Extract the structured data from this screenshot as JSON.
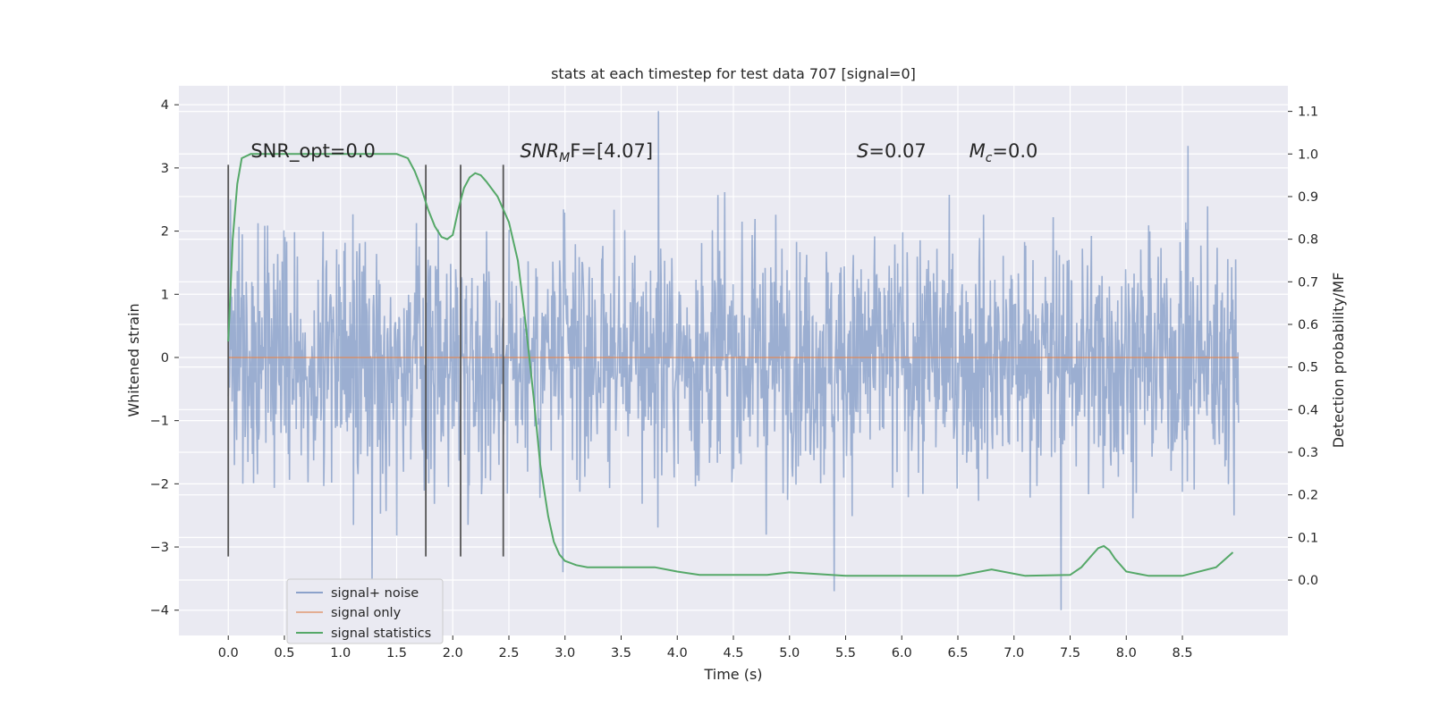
{
  "chart_data": {
    "type": "line",
    "title": "stats at each timestep for test data 707 [signal=0]",
    "xlabel": "Time (s)",
    "ylabel_left": "Whitened strain",
    "ylabel_right": "Detection probability/MF",
    "xlim": [
      -0.44,
      9.44
    ],
    "ylim_left": [
      -4.4,
      4.3
    ],
    "ylim_right": [
      -0.13,
      1.16
    ],
    "x_ticks": [
      0.0,
      0.5,
      1.0,
      1.5,
      2.0,
      2.5,
      3.0,
      3.5,
      4.0,
      4.5,
      5.0,
      5.5,
      6.0,
      6.5,
      7.0,
      7.5,
      8.0,
      8.5
    ],
    "x_tick_labels": [
      "0.0",
      "0.5",
      "1.0",
      "1.5",
      "2.0",
      "2.5",
      "3.0",
      "3.5",
      "4.0",
      "4.5",
      "5.0",
      "5.5",
      "6.0",
      "6.5",
      "7.0",
      "7.5",
      "8.0",
      "8.5"
    ],
    "y_left_ticks": [
      4,
      3,
      2,
      1,
      0,
      -1,
      -2,
      -3,
      -4
    ],
    "y_left_tick_labels": [
      "4",
      "3",
      "2",
      "1",
      "0",
      "−1",
      "−2",
      "−3",
      "−4"
    ],
    "y_right_ticks": [
      1.1,
      1.0,
      0.9,
      0.8,
      0.7,
      0.6,
      0.5,
      0.4,
      0.3,
      0.2,
      0.1,
      0.0
    ],
    "y_right_tick_labels": [
      "1.1",
      "1.0",
      "0.9",
      "0.8",
      "0.7",
      "0.6",
      "0.5",
      "0.4",
      "0.3",
      "0.2",
      "0.1",
      "0.0"
    ],
    "grid": true,
    "noise": {
      "name": "signal+ noise",
      "color": "#4c72b0",
      "opacity": 0.5,
      "t_start": 0.0,
      "t_end": 9.0,
      "typical_range": [
        -2.0,
        2.0
      ],
      "extremes": [
        {
          "t": 1.28,
          "v": -3.5
        },
        {
          "t": 3.83,
          "v": 3.9
        },
        {
          "t": 5.4,
          "v": -3.7
        },
        {
          "t": 7.42,
          "v": -4.0
        },
        {
          "t": 8.55,
          "v": 3.35
        },
        {
          "t": 2.98,
          "v": -3.4
        },
        {
          "t": 0.02,
          "v": 2.5
        }
      ]
    },
    "signal_only": {
      "name": "signal only",
      "color": "#dd8452",
      "value": 0.0,
      "t_start": 0.0,
      "t_end": 9.0
    },
    "statistics": {
      "name": "signal statistics",
      "color": "#55a868",
      "x": [
        0.0,
        0.04,
        0.08,
        0.12,
        0.2,
        0.3,
        0.5,
        1.0,
        1.5,
        1.6,
        1.66,
        1.72,
        1.78,
        1.84,
        1.9,
        1.95,
        2.0,
        2.05,
        2.1,
        2.15,
        2.2,
        2.25,
        2.3,
        2.4,
        2.5,
        2.58,
        2.65,
        2.72,
        2.78,
        2.85,
        2.9,
        2.95,
        3.0,
        3.1,
        3.2,
        3.4,
        3.6,
        3.8,
        4.0,
        4.2,
        4.5,
        4.8,
        5.0,
        5.2,
        5.5,
        6.0,
        6.5,
        6.8,
        7.1,
        7.5,
        7.6,
        7.7,
        7.75,
        7.8,
        7.85,
        7.9,
        8.0,
        8.2,
        8.5,
        8.8,
        8.95
      ],
      "y": [
        0.56,
        0.8,
        0.93,
        0.99,
        1.0,
        1.0,
        1.0,
        1.0,
        1.0,
        0.99,
        0.96,
        0.92,
        0.87,
        0.83,
        0.805,
        0.8,
        0.81,
        0.87,
        0.92,
        0.945,
        0.955,
        0.95,
        0.935,
        0.9,
        0.84,
        0.75,
        0.6,
        0.43,
        0.27,
        0.15,
        0.09,
        0.06,
        0.045,
        0.035,
        0.03,
        0.03,
        0.03,
        0.03,
        0.02,
        0.012,
        0.012,
        0.012,
        0.018,
        0.015,
        0.01,
        0.01,
        0.01,
        0.025,
        0.01,
        0.012,
        0.03,
        0.06,
        0.075,
        0.08,
        0.07,
        0.05,
        0.02,
        0.01,
        0.01,
        0.03,
        0.065
      ]
    },
    "vlines": {
      "color": "#555555",
      "x": [
        0.0,
        1.76,
        2.07,
        2.45
      ],
      "y_range": [
        -3.15,
        3.05
      ]
    },
    "annotations": [
      {
        "key": "snr_opt",
        "text": "SNR_opt=0.0",
        "x": 0.2,
        "y": 3.17
      },
      {
        "key": "snr_mf",
        "base": "SNR",
        "sub": "M",
        "rest": "F=[4.07]",
        "x": 2.6,
        "y": 3.17
      },
      {
        "key": "s",
        "base": "S",
        "rest": "=0.07",
        "x": 5.6,
        "y": 3.17
      },
      {
        "key": "mc",
        "base": "M",
        "sub": "c",
        "rest": "=0.0",
        "x": 6.6,
        "y": 3.17
      }
    ],
    "legend": {
      "placement": "lower-left",
      "entries": [
        {
          "label": "signal+ noise",
          "color": "#4c72b0"
        },
        {
          "label": "signal only",
          "color": "#dd8452"
        },
        {
          "label": "signal statistics",
          "color": "#55a868"
        }
      ]
    }
  }
}
